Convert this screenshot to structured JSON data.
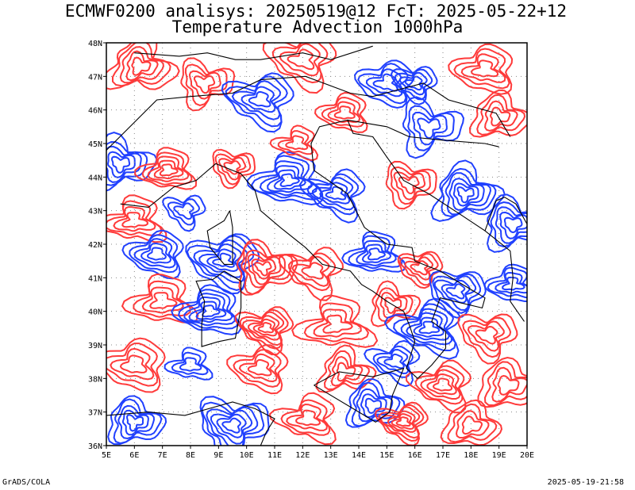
{
  "title": {
    "line1": "ECMWF0200 analisys: 20250519@12 FcT: 2025-05-22+12",
    "line2": "Temperature Advection 1000hPa"
  },
  "footer": {
    "credit": "GrADS/COLA",
    "timestamp": "2025-05-19-21:58"
  },
  "map": {
    "lon_min": 5,
    "lon_max": 20,
    "lat_min": 36,
    "lat_max": 48,
    "lon_ticks": [
      "5E",
      "6E",
      "7E",
      "8E",
      "9E",
      "10E",
      "11E",
      "12E",
      "13E",
      "14E",
      "15E",
      "16E",
      "17E",
      "18E",
      "19E",
      "20E"
    ],
    "lat_ticks": [
      "36N",
      "37N",
      "38N",
      "39N",
      "40N",
      "41N",
      "42N",
      "43N",
      "44N",
      "45N",
      "46N",
      "47N",
      "48N"
    ],
    "colors": {
      "positive": "#ff3a3a",
      "negative": "#2040ff",
      "coast": "#000000",
      "grid": "#888888"
    }
  }
}
